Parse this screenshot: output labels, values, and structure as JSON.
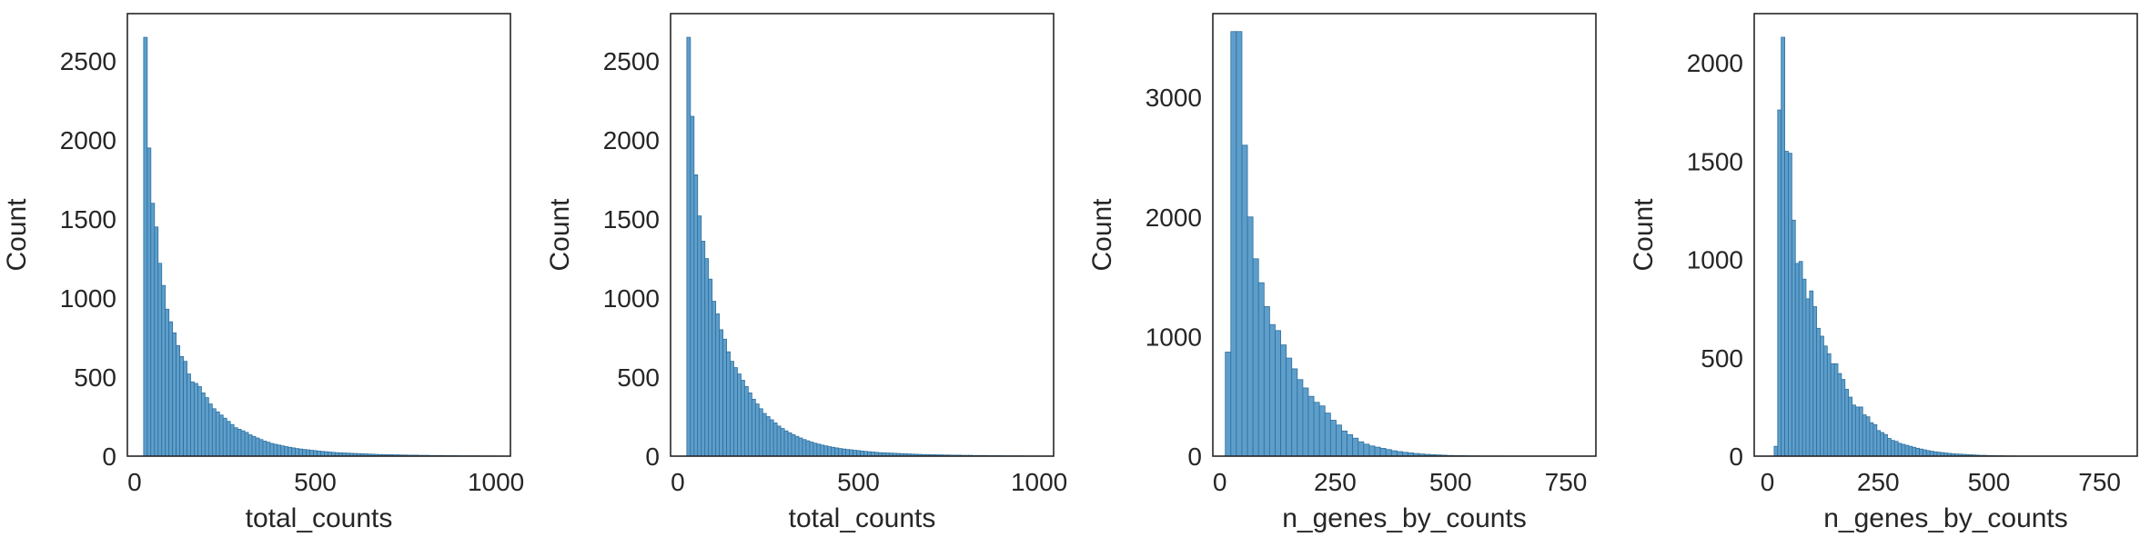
{
  "style": {
    "bar_fill": "#5e9ecb",
    "bar_edge": "#2e6f9e",
    "axis_color": "#262626",
    "background": "#ffffff"
  },
  "chart_data": [
    {
      "type": "bar",
      "title": "",
      "xlabel": "total_counts",
      "ylabel": "Count",
      "xlim": [
        -20,
        1040
      ],
      "ylim": [
        0,
        2800
      ],
      "xticks": [
        0,
        500,
        1000
      ],
      "yticks": [
        0,
        500,
        1000,
        1500,
        2000,
        2500
      ],
      "bin_start": 25,
      "bin_width": 10,
      "grid": false,
      "values": [
        2650,
        1950,
        1600,
        1450,
        1220,
        1080,
        930,
        850,
        780,
        700,
        630,
        600,
        520,
        470,
        460,
        440,
        400,
        370,
        330,
        300,
        280,
        260,
        240,
        220,
        200,
        180,
        170,
        160,
        150,
        135,
        125,
        115,
        105,
        95,
        88,
        80,
        75,
        70,
        65,
        60,
        56,
        52,
        48,
        45,
        42,
        40,
        37,
        35,
        32,
        30,
        28,
        26,
        24,
        22,
        21,
        20,
        19,
        18,
        17,
        16,
        15,
        14,
        13,
        12,
        11,
        10,
        10,
        9,
        9,
        8,
        8,
        7,
        7,
        6,
        6,
        6,
        5,
        5,
        5,
        4,
        4,
        4,
        4,
        3,
        3,
        3,
        3,
        2,
        2,
        2,
        2,
        2,
        2,
        1,
        1,
        1,
        1,
        1
      ]
    },
    {
      "type": "bar",
      "title": "",
      "xlabel": "total_counts",
      "ylabel": "Count",
      "xlim": [
        -20,
        1040
      ],
      "ylim": [
        0,
        2800
      ],
      "xticks": [
        0,
        500,
        1000
      ],
      "yticks": [
        0,
        500,
        1000,
        1500,
        2000,
        2500
      ],
      "bin_start": 25,
      "bin_width": 10,
      "grid": false,
      "values": [
        2650,
        2150,
        1780,
        1520,
        1360,
        1250,
        1120,
        980,
        900,
        800,
        740,
        660,
        600,
        560,
        520,
        480,
        440,
        400,
        360,
        330,
        300,
        270,
        250,
        230,
        210,
        190,
        175,
        160,
        148,
        136,
        125,
        115,
        105,
        97,
        89,
        82,
        76,
        70,
        65,
        60,
        56,
        52,
        48,
        45,
        42,
        40,
        37,
        35,
        32,
        30,
        28,
        26,
        24,
        22,
        21,
        20,
        19,
        18,
        17,
        16,
        15,
        14,
        13,
        12,
        11,
        10,
        10,
        9,
        9,
        8,
        8,
        7,
        7,
        6,
        6,
        6,
        5,
        5,
        5,
        4,
        4,
        4,
        4,
        3,
        3,
        3,
        3,
        2,
        2,
        2,
        2,
        2,
        2,
        1,
        1,
        1,
        1,
        1
      ]
    },
    {
      "type": "bar",
      "title": "",
      "xlabel": "n_genes_by_counts",
      "ylabel": "Count",
      "xlim": [
        -15,
        815
      ],
      "ylim": [
        0,
        3700
      ],
      "xticks": [
        0,
        250,
        500,
        750
      ],
      "yticks": [
        0,
        1000,
        2000,
        3000
      ],
      "bin_start": 12,
      "bin_width": 12,
      "grid": false,
      "values": [
        870,
        3550,
        3550,
        2600,
        2000,
        1650,
        1450,
        1250,
        1100,
        1050,
        930,
        820,
        730,
        640,
        570,
        500,
        450,
        420,
        360,
        300,
        260,
        210,
        180,
        150,
        120,
        100,
        85,
        75,
        65,
        55,
        45,
        38,
        32,
        27,
        22,
        18,
        15,
        12,
        10,
        8,
        6,
        5,
        4,
        3,
        2,
        2,
        1,
        1,
        1,
        1
      ]
    },
    {
      "type": "bar",
      "title": "",
      "xlabel": "n_genes_by_counts",
      "ylabel": "Count",
      "xlim": [
        -30,
        835
      ],
      "ylim": [
        0,
        2250
      ],
      "xticks": [
        0,
        250,
        500,
        750
      ],
      "yticks": [
        0,
        500,
        1000,
        1500,
        2000
      ],
      "bin_start": 15,
      "bin_width": 8,
      "grid": false,
      "values": [
        50,
        1760,
        2130,
        1550,
        1540,
        1200,
        980,
        990,
        900,
        800,
        840,
        760,
        650,
        610,
        560,
        520,
        470,
        470,
        420,
        390,
        340,
        300,
        260,
        250,
        250,
        210,
        200,
        170,
        160,
        130,
        120,
        110,
        90,
        80,
        75,
        65,
        60,
        55,
        50,
        45,
        40,
        36,
        32,
        28,
        25,
        22,
        20,
        18,
        16,
        14,
        12,
        11,
        10,
        9,
        8,
        7,
        6,
        5,
        4,
        4,
        3,
        3,
        2,
        2,
        2,
        1,
        1,
        1
      ]
    }
  ]
}
